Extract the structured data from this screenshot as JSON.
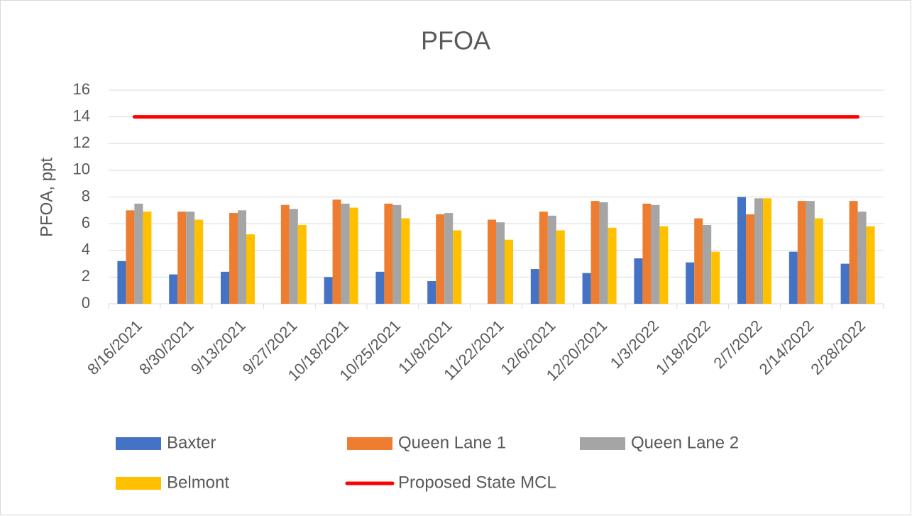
{
  "chart_data": {
    "type": "bar",
    "title": "PFOA",
    "y_label": "PFOA, ppt",
    "categories": [
      "8/16/2021",
      "8/30/2021",
      "9/13/2021",
      "9/27/2021",
      "10/18/2021",
      "10/25/2021",
      "11/8/2021",
      "11/22/2021",
      "12/6/2021",
      "12/20/2021",
      "1/3/2022",
      "1/18/2022",
      "2/7/2022",
      "2/14/2022",
      "2/28/2022"
    ],
    "series": [
      {
        "name": "Baxter",
        "color": "#4472c4",
        "values": [
          3.2,
          2.2,
          2.4,
          null,
          2.0,
          2.4,
          1.7,
          null,
          2.6,
          2.3,
          3.4,
          3.1,
          8.0,
          3.9,
          3.0
        ]
      },
      {
        "name": "Queen Lane 1",
        "color": "#ed7d31",
        "values": [
          7.0,
          6.9,
          6.8,
          7.4,
          7.8,
          7.5,
          6.7,
          6.3,
          6.9,
          7.7,
          7.5,
          6.4,
          6.7,
          7.7,
          7.7
        ]
      },
      {
        "name": "Queen Lane 2",
        "color": "#a5a5a5",
        "values": [
          7.5,
          6.9,
          7.0,
          7.1,
          7.5,
          7.4,
          6.8,
          6.1,
          6.6,
          7.6,
          7.4,
          5.9,
          7.9,
          7.7,
          6.9
        ]
      },
      {
        "name": "Belmont",
        "color": "#ffc000",
        "values": [
          6.9,
          6.3,
          5.2,
          5.9,
          7.2,
          6.4,
          5.5,
          4.8,
          5.5,
          5.7,
          5.8,
          3.9,
          7.9,
          6.4,
          5.8
        ]
      },
      {
        "name": "Proposed State MCL",
        "color": "#ff0000",
        "type": "line",
        "values": [
          14,
          14,
          14,
          14,
          14,
          14,
          14,
          14,
          14,
          14,
          14,
          14,
          14,
          14,
          14
        ]
      }
    ],
    "ylim": [
      0,
      16
    ],
    "yticks": [
      0,
      2,
      4,
      6,
      8,
      10,
      12,
      14,
      16
    ],
    "grid": true
  }
}
